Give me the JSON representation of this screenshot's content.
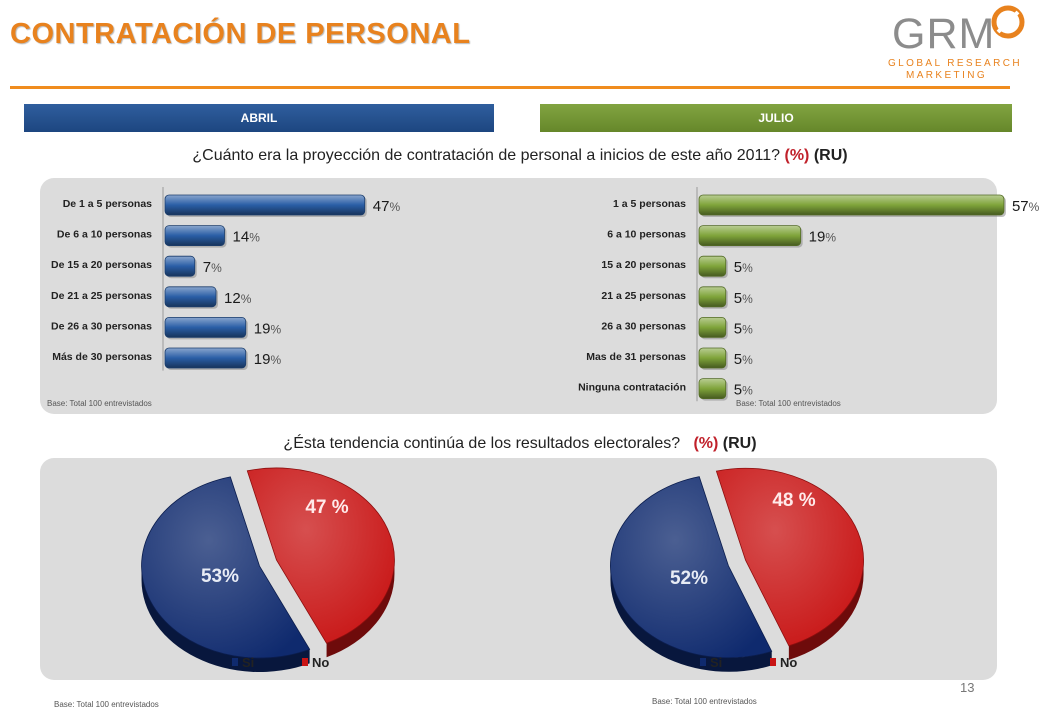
{
  "header": {
    "title": "CONTRATACIÓN DE PERSONAL",
    "logo_main": "GRM",
    "logo_line1": "GLOBAL RESEARCH",
    "logo_line2": "MARKETING"
  },
  "periods": {
    "left": "ABRIL",
    "right": "JULIO"
  },
  "question1": {
    "text": "¿Cuánto era la proyección de contratación de personal a inicios de este año 2011?",
    "paren": "(%)",
    "ru": "(RU)"
  },
  "question2": {
    "text": "¿Ésta tendencia continúa  de los resultados electorales?",
    "paren": "(%)",
    "ru": "(RU)"
  },
  "base_text": "Base: Total  100 entrevistados",
  "page_number": "13",
  "colors": {
    "blue": "#2a5ea6",
    "green": "#7fa43a",
    "pie_blue": "#0f2a6e",
    "pie_red": "#c81414",
    "accent": "#e8821e"
  },
  "chart_data": [
    {
      "type": "bar",
      "orientation": "horizontal",
      "period": "ABRIL",
      "categories": [
        "De 1 a 5 personas",
        "De 6 a 10 personas",
        "De 15 a 20 personas",
        "De 21 a 25 personas",
        "De 26 a 30 personas",
        "Más de 30 personas"
      ],
      "values": [
        47,
        14,
        7,
        12,
        19,
        19
      ],
      "value_suffix": "%",
      "color": "#2a5ea6"
    },
    {
      "type": "bar",
      "orientation": "horizontal",
      "period": "JULIO",
      "categories": [
        "1 a 5 personas",
        "6 a 10 personas",
        "15 a 20 personas",
        "21 a 25 personas",
        "26 a 30 personas",
        "Mas de 31 personas",
        "Ninguna contratación"
      ],
      "values": [
        57,
        19,
        5,
        5,
        5,
        5,
        5
      ],
      "value_suffix": "%",
      "color": "#7fa43a"
    },
    {
      "type": "pie",
      "period": "ABRIL",
      "categories": [
        "Si",
        "No"
      ],
      "values": [
        53,
        47
      ],
      "labels": [
        "53%",
        "47 %"
      ],
      "colors": [
        "#0f2a6e",
        "#c81414"
      ]
    },
    {
      "type": "pie",
      "period": "JULIO",
      "categories": [
        "Si",
        "No"
      ],
      "values": [
        52,
        48
      ],
      "labels": [
        "52%",
        "48 %"
      ],
      "colors": [
        "#0f2a6e",
        "#c81414"
      ]
    }
  ]
}
